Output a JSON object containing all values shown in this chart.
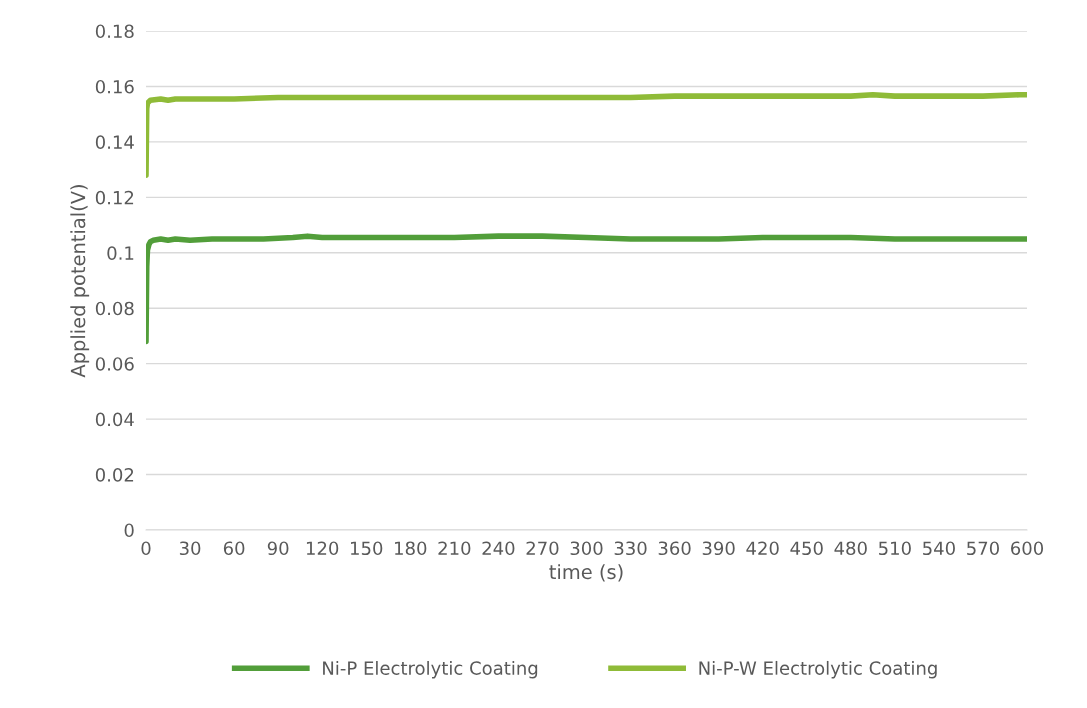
{
  "chart_data": {
    "type": "line",
    "xlabel": "time (s)",
    "ylabel": "Applied potential(V)",
    "xlim": [
      0,
      600
    ],
    "xticks": [
      0,
      30,
      60,
      90,
      120,
      150,
      180,
      210,
      240,
      270,
      300,
      330,
      360,
      390,
      420,
      450,
      480,
      510,
      540,
      570,
      600
    ],
    "ylim": [
      0,
      0.18
    ],
    "yticks": [
      0,
      0.02,
      0.04,
      0.06,
      0.08,
      0.1,
      0.12,
      0.14,
      0.16,
      0.18
    ],
    "grid": "y",
    "legend": "bottom",
    "line_style": "solid",
    "marker": "none",
    "series": [
      {
        "name": "Ni-P Electrolytic Coating",
        "color": "#529e3a",
        "x": [
          0,
          0.5,
          1,
          2,
          3,
          5,
          10,
          15,
          20,
          30,
          45,
          60,
          80,
          100,
          110,
          120,
          150,
          180,
          210,
          240,
          270,
          300,
          330,
          360,
          390,
          420,
          450,
          480,
          510,
          530,
          540,
          570,
          590,
          600
        ],
        "values": [
          0.068,
          0.095,
          0.101,
          0.103,
          0.104,
          0.1045,
          0.105,
          0.1045,
          0.105,
          0.1045,
          0.105,
          0.105,
          0.105,
          0.1055,
          0.106,
          0.1055,
          0.1055,
          0.1055,
          0.1055,
          0.106,
          0.106,
          0.1055,
          0.105,
          0.105,
          0.105,
          0.1055,
          0.1055,
          0.1055,
          0.105,
          0.105,
          0.105,
          0.105,
          0.105,
          0.105
        ]
      },
      {
        "name": "Ni-P-W Electrolytic Coating",
        "color": "#8fbb38",
        "x": [
          0,
          0.5,
          1,
          3,
          10,
          15,
          20,
          40,
          60,
          90,
          120,
          150,
          180,
          210,
          240,
          270,
          300,
          330,
          360,
          390,
          420,
          450,
          480,
          495,
          510,
          540,
          570,
          595,
          600
        ],
        "values": [
          0.128,
          0.152,
          0.154,
          0.155,
          0.1555,
          0.155,
          0.1555,
          0.1555,
          0.1555,
          0.156,
          0.156,
          0.156,
          0.156,
          0.156,
          0.156,
          0.156,
          0.156,
          0.156,
          0.1565,
          0.1565,
          0.1565,
          0.1565,
          0.1565,
          0.157,
          0.1565,
          0.1565,
          0.1565,
          0.157,
          0.157
        ]
      }
    ]
  }
}
